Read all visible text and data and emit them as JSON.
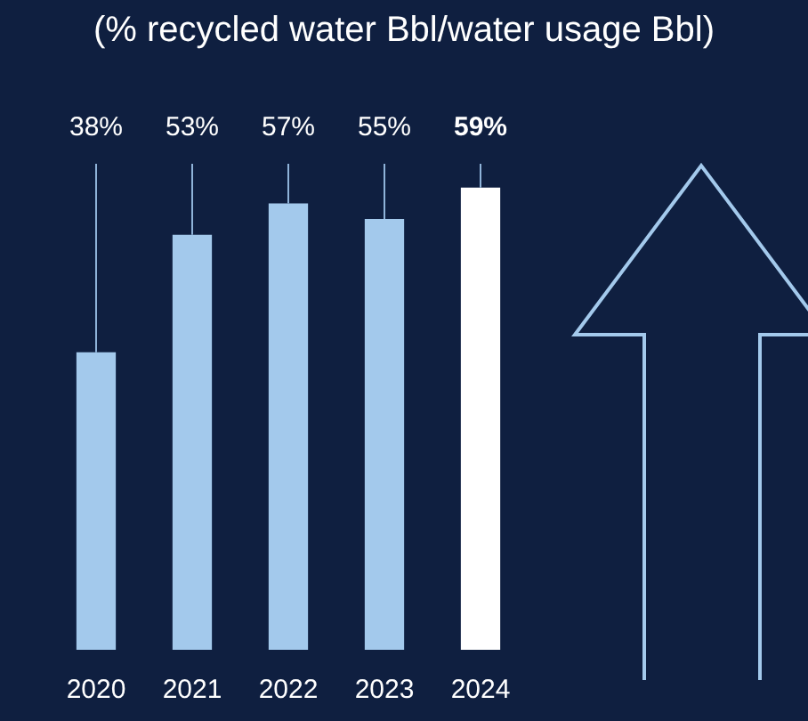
{
  "chart_data": {
    "type": "bar",
    "subtitle": "(% recycled water Bbl/water usage Bbl)",
    "categories": [
      "2020",
      "2021",
      "2022",
      "2023",
      "2024"
    ],
    "values": [
      38,
      53,
      57,
      55,
      59
    ],
    "value_labels": [
      "38%",
      "53%",
      "57%",
      "55%",
      "59%"
    ],
    "colors": [
      "#a3c9ec",
      "#a3c9ec",
      "#a3c9ec",
      "#a3c9ec",
      "#ffffff"
    ],
    "grid": false,
    "legend": false,
    "tick_labels": "x"
  }
}
